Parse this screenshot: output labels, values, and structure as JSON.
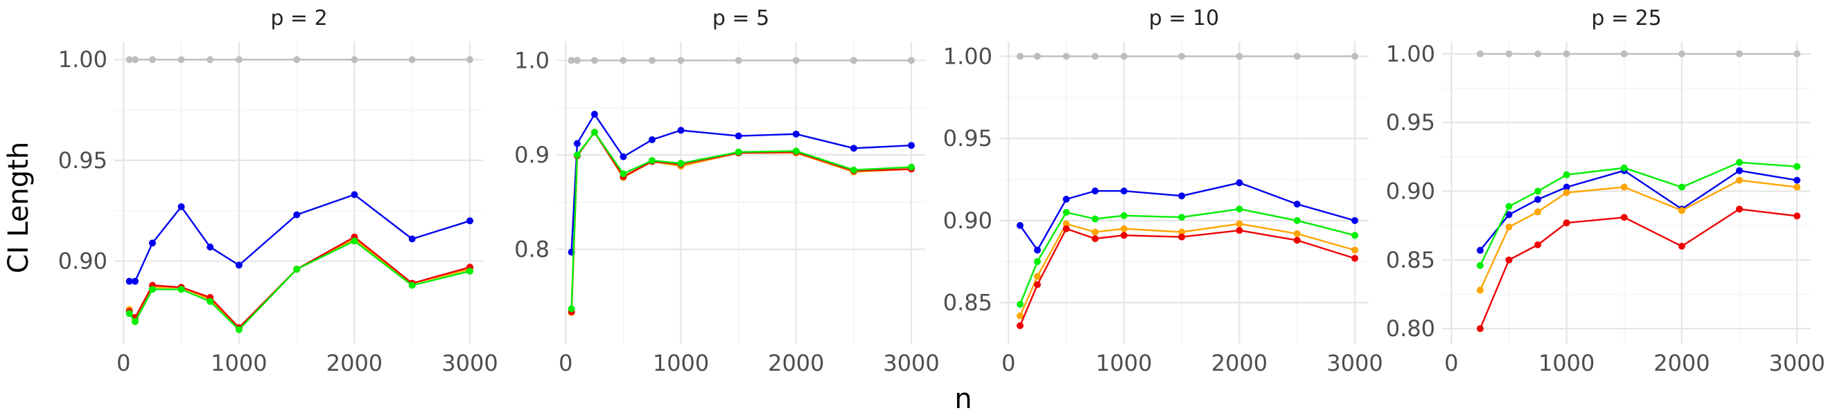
{
  "chart_data": {
    "type": "line",
    "xlabel": "n",
    "ylabel": "CI Length",
    "grid": true,
    "series_colors": {
      "gray": "#bdbdbd",
      "blue": "#0000ee",
      "orange": "#ffa500",
      "red": "#ee0000",
      "green": "#00ee00"
    },
    "draw_order": [
      "gray",
      "blue",
      "orange",
      "red",
      "green"
    ],
    "panels": [
      {
        "title": "p = 2",
        "xlim": [
          -80,
          3120
        ],
        "ylim": [
          0.859,
          1.009
        ],
        "xticks": [
          0,
          1000,
          2000,
          3000
        ],
        "xtick_labels": [
          "0",
          "1000",
          "2000",
          "3000"
        ],
        "yticks": [
          0.9,
          0.95,
          1.0
        ],
        "ytick_labels": [
          "0.90",
          "0.95",
          "1.00"
        ],
        "x": [
          50,
          100,
          250,
          500,
          750,
          1000,
          1500,
          2000,
          2500,
          3000
        ],
        "series": [
          {
            "color": "gray",
            "values": [
              1.0,
              1.0,
              1.0,
              1.0,
              1.0,
              1.0,
              1.0,
              1.0,
              1.0,
              1.0
            ]
          },
          {
            "color": "blue",
            "values": [
              0.89,
              0.89,
              0.909,
              0.927,
              0.907,
              0.898,
              0.923,
              0.933,
              0.911,
              0.92
            ]
          },
          {
            "color": "orange",
            "values": [
              0.876,
              0.871,
              0.887,
              0.887,
              0.881,
              0.867,
              0.896,
              0.911,
              0.889,
              0.896
            ]
          },
          {
            "color": "red",
            "values": [
              0.875,
              0.872,
              0.888,
              0.887,
              0.882,
              0.867,
              0.896,
              0.912,
              0.889,
              0.897
            ]
          },
          {
            "color": "green",
            "values": [
              0.874,
              0.87,
              0.886,
              0.886,
              0.88,
              0.866,
              0.896,
              0.91,
              0.888,
              0.895
            ]
          }
        ]
      },
      {
        "title": "p = 5",
        "xlim": [
          -80,
          3120
        ],
        "ylim": [
          0.7,
          1.02
        ],
        "xticks": [
          0,
          1000,
          2000,
          3000
        ],
        "xtick_labels": [
          "0",
          "1000",
          "2000",
          "3000"
        ],
        "yticks": [
          0.8,
          0.9,
          1.0
        ],
        "ytick_labels": [
          "0.8",
          "0.9",
          "1.0"
        ],
        "x": [
          50,
          100,
          250,
          500,
          750,
          1000,
          1500,
          2000,
          2500,
          3000
        ],
        "series": [
          {
            "color": "gray",
            "values": [
              1.0,
              1.0,
              1.0,
              1.0,
              1.0,
              1.0,
              1.0,
              1.0,
              1.0,
              1.0
            ]
          },
          {
            "color": "blue",
            "values": [
              0.797,
              0.912,
              0.943,
              0.898,
              0.916,
              0.926,
              0.92,
              0.922,
              0.907,
              0.91
            ]
          },
          {
            "color": "orange",
            "values": [
              0.733,
              0.899,
              0.924,
              0.876,
              0.893,
              0.888,
              0.902,
              0.902,
              0.882,
              0.885
            ]
          },
          {
            "color": "red",
            "values": [
              0.734,
              0.899,
              0.924,
              0.877,
              0.893,
              0.89,
              0.902,
              0.903,
              0.883,
              0.885
            ]
          },
          {
            "color": "green",
            "values": [
              0.737,
              0.9,
              0.924,
              0.88,
              0.894,
              0.891,
              0.903,
              0.904,
              0.884,
              0.887
            ]
          }
        ]
      },
      {
        "title": "p = 10",
        "xlim": [
          -80,
          3120
        ],
        "ylim": [
          0.825,
          1.009
        ],
        "xticks": [
          0,
          1000,
          2000,
          3000
        ],
        "xtick_labels": [
          "0",
          "1000",
          "2000",
          "3000"
        ],
        "yticks": [
          0.85,
          0.9,
          0.95,
          1.0
        ],
        "ytick_labels": [
          "0.85",
          "0.90",
          "0.95",
          "1.00"
        ],
        "x": [
          100,
          250,
          500,
          750,
          1000,
          1500,
          2000,
          2500,
          3000
        ],
        "series": [
          {
            "color": "gray",
            "values": [
              1.0,
              1.0,
              1.0,
              1.0,
              1.0,
              1.0,
              1.0,
              1.0,
              1.0
            ]
          },
          {
            "color": "blue",
            "values": [
              0.897,
              0.882,
              0.913,
              0.918,
              0.918,
              0.915,
              0.923,
              0.91,
              0.9
            ]
          },
          {
            "color": "orange",
            "values": [
              0.842,
              0.866,
              0.898,
              0.893,
              0.895,
              0.893,
              0.898,
              0.892,
              0.882
            ]
          },
          {
            "color": "red",
            "values": [
              0.836,
              0.861,
              0.895,
              0.889,
              0.891,
              0.89,
              0.894,
              0.888,
              0.877
            ]
          },
          {
            "color": "green",
            "values": [
              0.849,
              0.875,
              0.905,
              0.901,
              0.903,
              0.902,
              0.907,
              0.9,
              0.891
            ]
          }
        ]
      },
      {
        "title": "p = 25",
        "xlim": [
          -80,
          3120
        ],
        "ylim": [
          0.789,
          1.009
        ],
        "xticks": [
          0,
          1000,
          2000,
          3000
        ],
        "xtick_labels": [
          "0",
          "1000",
          "2000",
          "3000"
        ],
        "yticks": [
          0.8,
          0.85,
          0.9,
          0.95,
          1.0
        ],
        "ytick_labels": [
          "0.80",
          "0.85",
          "0.90",
          "0.95",
          "1.00"
        ],
        "x": [
          250,
          500,
          750,
          1000,
          1500,
          2000,
          2500,
          3000
        ],
        "series": [
          {
            "color": "gray",
            "values": [
              1.0,
              1.0,
              1.0,
              1.0,
              1.0,
              1.0,
              1.0,
              1.0
            ]
          },
          {
            "color": "blue",
            "values": [
              0.857,
              0.883,
              0.894,
              0.903,
              0.915,
              0.887,
              0.915,
              0.908
            ]
          },
          {
            "color": "orange",
            "values": [
              0.828,
              0.874,
              0.885,
              0.899,
              0.903,
              0.886,
              0.908,
              0.903
            ]
          },
          {
            "color": "red",
            "values": [
              0.8,
              0.85,
              0.861,
              0.877,
              0.881,
              0.86,
              0.887,
              0.882
            ]
          },
          {
            "color": "green",
            "values": [
              0.846,
              0.889,
              0.9,
              0.912,
              0.917,
              0.903,
              0.921,
              0.918
            ]
          }
        ]
      }
    ]
  }
}
